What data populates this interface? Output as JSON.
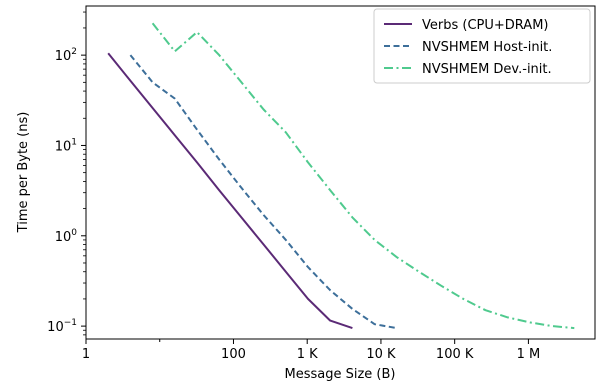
{
  "chart_data": {
    "type": "line",
    "title": "",
    "xlabel": "Message Size (B)",
    "ylabel": "Time per Byte (ns)",
    "xscale": "log",
    "yscale": "log",
    "xlim": [
      1,
      8000000
    ],
    "ylim": [
      0.072,
      350
    ],
    "grid": false,
    "legend_position": "top-right",
    "x_ticks": [
      {
        "value": 1,
        "label": "1"
      },
      {
        "value": 100,
        "label": "100"
      },
      {
        "value": 1000,
        "label": "1 K"
      },
      {
        "value": 10000,
        "label": "10 K"
      },
      {
        "value": 100000,
        "label": "100 K"
      },
      {
        "value": 1000000,
        "label": "1 M"
      }
    ],
    "x_minor_ticks": [
      10
    ],
    "y_ticks": [
      {
        "value": 0.1,
        "base": "10",
        "exp": "−1"
      },
      {
        "value": 1,
        "base": "10",
        "exp": "0"
      },
      {
        "value": 10,
        "base": "10",
        "exp": "1"
      },
      {
        "value": 100,
        "base": "10",
        "exp": "2"
      }
    ],
    "series": [
      {
        "name": "Verbs (CPU+DRAM)",
        "color": "#5b2a76",
        "dash": "solid",
        "x": [
          2,
          4,
          8,
          16,
          32,
          64,
          128,
          256,
          512,
          1024,
          2048,
          4096
        ],
        "y": [
          105,
          52,
          26,
          13,
          6.5,
          3.2,
          1.6,
          0.8,
          0.4,
          0.2,
          0.115,
          0.095
        ]
      },
      {
        "name": "NVSHMEM Host-init.",
        "color": "#3d6f9a",
        "dash": "dashed",
        "x": [
          4,
          8,
          16,
          32,
          64,
          128,
          256,
          512,
          1024,
          2048,
          4096,
          8192,
          16384
        ],
        "y": [
          100,
          50,
          33,
          15,
          7,
          3.4,
          1.7,
          0.9,
          0.45,
          0.25,
          0.155,
          0.105,
          0.095
        ]
      },
      {
        "name": "NVSHMEM Dev.-init.",
        "color": "#4fca8e",
        "dash": "dashdot",
        "x": [
          8,
          16,
          32,
          64,
          128,
          256,
          512,
          1024,
          2048,
          4096,
          8192,
          16384,
          32768,
          65536,
          131072,
          262144,
          524288,
          1048576,
          2097152,
          4194304
        ],
        "y": [
          225,
          110,
          180,
          100,
          50,
          25,
          14,
          6.5,
          3.2,
          1.6,
          0.9,
          0.58,
          0.4,
          0.28,
          0.2,
          0.15,
          0.125,
          0.11,
          0.1,
          0.095
        ]
      }
    ]
  }
}
